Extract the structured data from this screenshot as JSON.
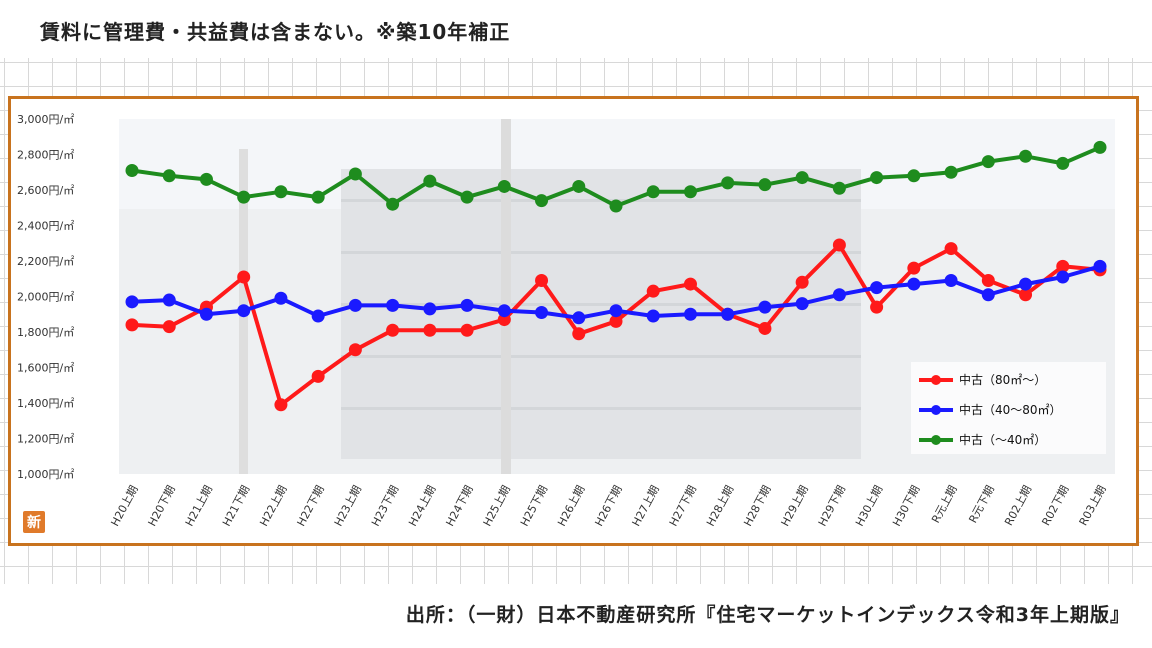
{
  "note": "賃料に管理費・共益費は含まない。※築10年補正",
  "source": "出所：（一財）日本不動産研究所『住宅マーケットインデックス令和3年上期版』",
  "badge": "新",
  "colors": {
    "frame": "#c8731e",
    "badge": "#e07a2a"
  },
  "chart_data": {
    "type": "line",
    "ylim": [
      1000,
      3000
    ],
    "yticks": [
      "1,000円/㎡",
      "1,200円/㎡",
      "1,400円/㎡",
      "1,600円/㎡",
      "1,800円/㎡",
      "2,000円/㎡",
      "2,200円/㎡",
      "2,400円/㎡",
      "2,600円/㎡",
      "2,800円/㎡",
      "3,000円/㎡"
    ],
    "categories": [
      "H20上期",
      "H20下期",
      "H21上期",
      "H21下期",
      "H22上期",
      "H22下期",
      "H23上期",
      "H23下期",
      "H24上期",
      "H24下期",
      "H25上期",
      "H25下期",
      "H26上期",
      "H26下期",
      "H27上期",
      "H27下期",
      "H28上期",
      "H28下期",
      "H29上期",
      "H29下期",
      "H30上期",
      "H30下期",
      "R元上期",
      "R元下期",
      "R02上期",
      "R02下期",
      "R03上期"
    ],
    "legend_position": "right",
    "series": [
      {
        "name": "中古（80㎡～）",
        "color": "#ff1a1a",
        "values": [
          1840,
          1830,
          1940,
          2110,
          1390,
          1550,
          1700,
          1810,
          1810,
          1810,
          1870,
          2090,
          1790,
          1860,
          2030,
          2070,
          1900,
          1820,
          2080,
          2290,
          1940,
          2160,
          2270,
          2090,
          2010,
          2170,
          2150
        ]
      },
      {
        "name": "中古（40～80㎡）",
        "color": "#1a1aff",
        "values": [
          1970,
          1980,
          1900,
          1920,
          1990,
          1890,
          1950,
          1950,
          1930,
          1950,
          1920,
          1910,
          1880,
          1920,
          1890,
          1900,
          1900,
          1940,
          1960,
          2010,
          2050,
          2070,
          2090,
          2010,
          2070,
          2110,
          2170
        ]
      },
      {
        "name": "中古（～40㎡）",
        "color": "#1e8c1e",
        "values": [
          2710,
          2680,
          2660,
          2560,
          2590,
          2560,
          2690,
          2520,
          2650,
          2560,
          2620,
          2540,
          2620,
          2510,
          2590,
          2590,
          2640,
          2630,
          2670,
          2610,
          2670,
          2680,
          2700,
          2760,
          2790,
          2750,
          2840
        ]
      }
    ]
  }
}
